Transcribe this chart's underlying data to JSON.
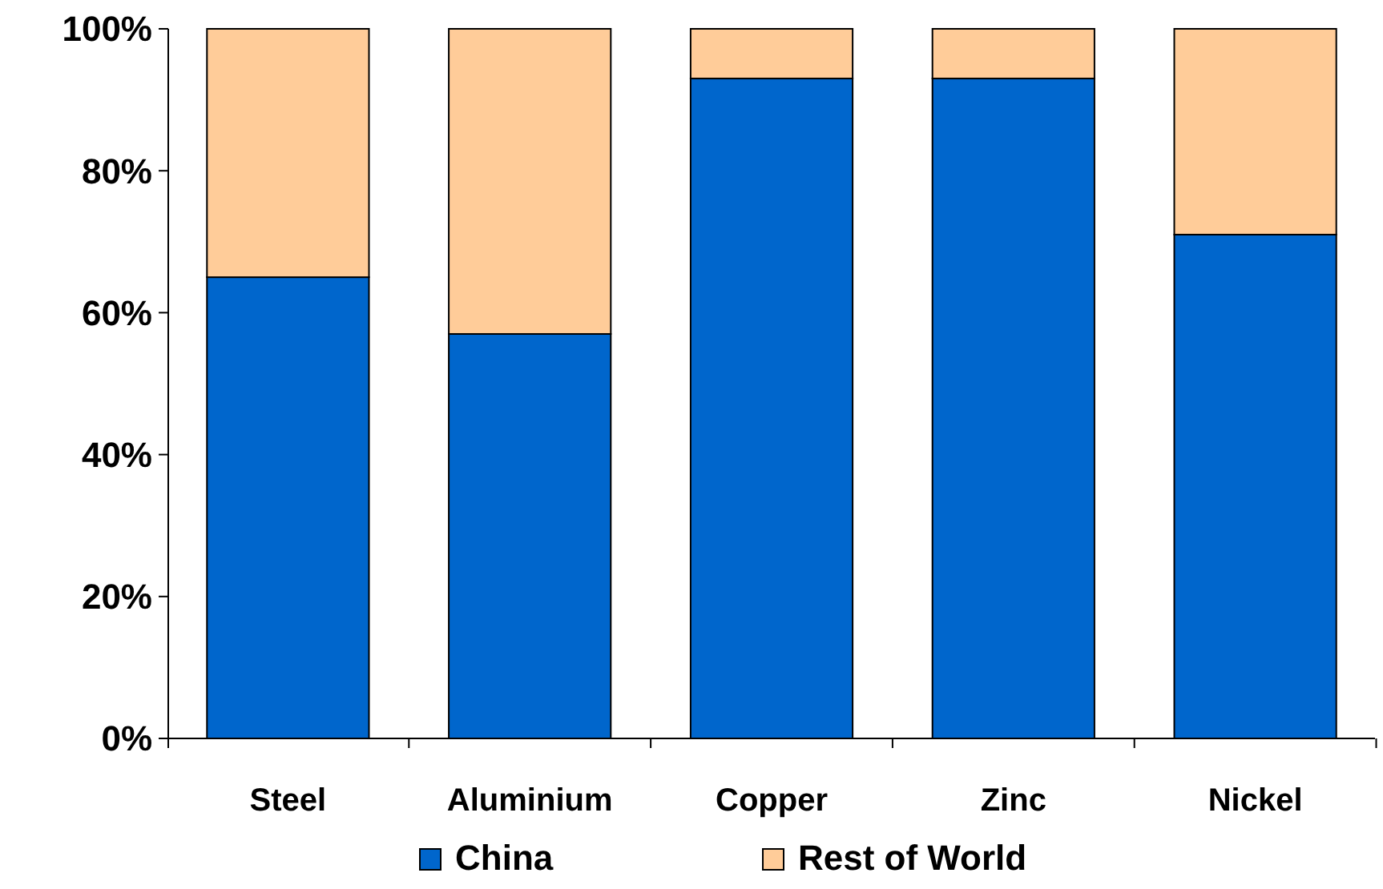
{
  "chart_data": {
    "type": "bar",
    "stacked": true,
    "categories": [
      "Steel",
      "Aluminium",
      "Copper",
      "Zinc",
      "Nickel"
    ],
    "series": [
      {
        "name": "China",
        "color": "#0066cc",
        "values": [
          65,
          57,
          93,
          93,
          71
        ]
      },
      {
        "name": "Rest of World",
        "color": "#ffcc99",
        "values": [
          35,
          43,
          7,
          7,
          29
        ]
      }
    ],
    "ylim": [
      0,
      100
    ],
    "yticks": [
      {
        "value": 0,
        "label": "0%"
      },
      {
        "value": 20,
        "label": "20%"
      },
      {
        "value": 40,
        "label": "40%"
      },
      {
        "value": 60,
        "label": "60%"
      },
      {
        "value": 80,
        "label": "80%"
      },
      {
        "value": 100,
        "label": "100%"
      }
    ],
    "grid": false,
    "legend": "bottom"
  }
}
